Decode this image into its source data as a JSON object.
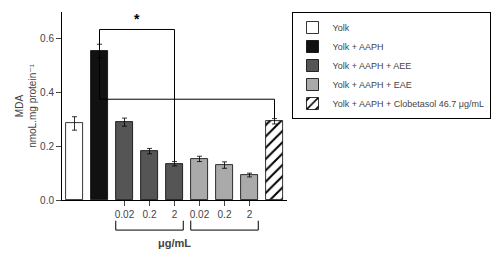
{
  "chart_data": {
    "type": "bar",
    "categories": [
      null,
      null,
      "0.02",
      "0.2",
      "2",
      "0.02",
      "0.2",
      "2",
      null
    ],
    "series": [
      {
        "name": "Yolk",
        "color": "white",
        "values": [
          0.285,
          null,
          null,
          null,
          null,
          null,
          null,
          null,
          null
        ],
        "errors": [
          0.025,
          null,
          null,
          null,
          null,
          null,
          null,
          null,
          null
        ]
      },
      {
        "name": "Yolk + AAPH",
        "color": "#111111",
        "values": [
          null,
          0.555,
          null,
          null,
          null,
          null,
          null,
          null,
          null
        ],
        "errors": [
          null,
          0.025,
          null,
          null,
          null,
          null,
          null,
          null,
          null
        ]
      },
      {
        "name": "Yolk + AAPH + AEE",
        "color": "#555555",
        "values": [
          null,
          null,
          0.29,
          0.182,
          0.135,
          null,
          null,
          null,
          null
        ],
        "errors": [
          null,
          null,
          0.015,
          0.01,
          0.008,
          null,
          null,
          null,
          null
        ]
      },
      {
        "name": "Yolk + AAPH + EAE",
        "color": "#aaaaaa",
        "values": [
          null,
          null,
          null,
          null,
          null,
          0.153,
          0.13,
          0.093,
          null
        ],
        "errors": [
          null,
          null,
          null,
          null,
          null,
          0.01,
          0.012,
          0.007,
          null
        ]
      },
      {
        "name": "Yolk + AAPH + Clobetasol 46.7 μg/mL",
        "color": "white",
        "marker": "hatch",
        "values": [
          null,
          null,
          null,
          null,
          null,
          null,
          null,
          null,
          0.293
        ],
        "errors": [
          null,
          null,
          null,
          null,
          null,
          null,
          null,
          null,
          0.01
        ]
      }
    ],
    "ylabel": "MDA\nnmoL.mg protein⁻¹",
    "xlabel": "μg/mL",
    "ylim": [
      0.0,
      0.7
    ],
    "yticks": [
      {
        "value": 0.0,
        "label": "0.0"
      },
      0.2,
      0.4,
      0.6
    ],
    "grid": false,
    "legend": "right",
    "annotations": [
      "*"
    ]
  }
}
